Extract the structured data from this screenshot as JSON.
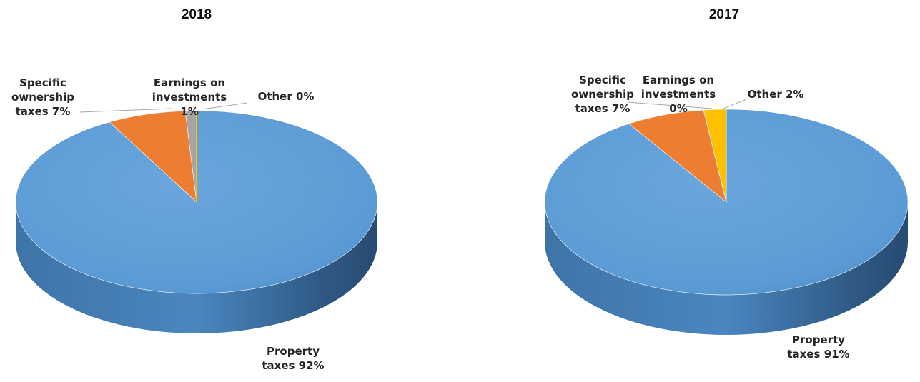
{
  "chart_data": [
    {
      "type": "pie",
      "title": "2018",
      "slices": [
        {
          "name": "Property taxes",
          "value": 92,
          "label": "Property taxes 92%",
          "color": "#5b9bd5"
        },
        {
          "name": "Specific ownership taxes",
          "value": 7,
          "label": "Specific ownership taxes 7%",
          "color": "#ed7d31"
        },
        {
          "name": "Earnings on investments",
          "value": 1,
          "label": "Earnings on investments 1%",
          "color": "#a5a5a5"
        },
        {
          "name": "Other",
          "value": 0,
          "label": "Other 0%",
          "color": "#ffc000"
        }
      ],
      "label_lines": [
        [
          "Property",
          "taxes 92%"
        ],
        [
          "Specific",
          "ownership",
          "taxes 7%"
        ],
        [
          "Earnings on",
          "investments",
          "1%"
        ],
        [
          "Other 0%"
        ]
      ]
    },
    {
      "type": "pie",
      "title": "2017",
      "slices": [
        {
          "name": "Property taxes",
          "value": 91,
          "label": "Property taxes 91%",
          "color": "#5b9bd5"
        },
        {
          "name": "Specific ownership taxes",
          "value": 7,
          "label": "Specific ownership taxes 7%",
          "color": "#ed7d31"
        },
        {
          "name": "Earnings on investments",
          "value": 0,
          "label": "Earnings on investments 0%",
          "color": "#a5a5a5"
        },
        {
          "name": "Other",
          "value": 2,
          "label": "Other 2%",
          "color": "#ffc000"
        }
      ],
      "label_lines": [
        [
          "Property",
          "taxes 91%"
        ],
        [
          "Specific",
          "ownership",
          "taxes 7%"
        ],
        [
          "Earnings on",
          "investments",
          "0%"
        ],
        [
          "Other 2%"
        ]
      ]
    }
  ]
}
